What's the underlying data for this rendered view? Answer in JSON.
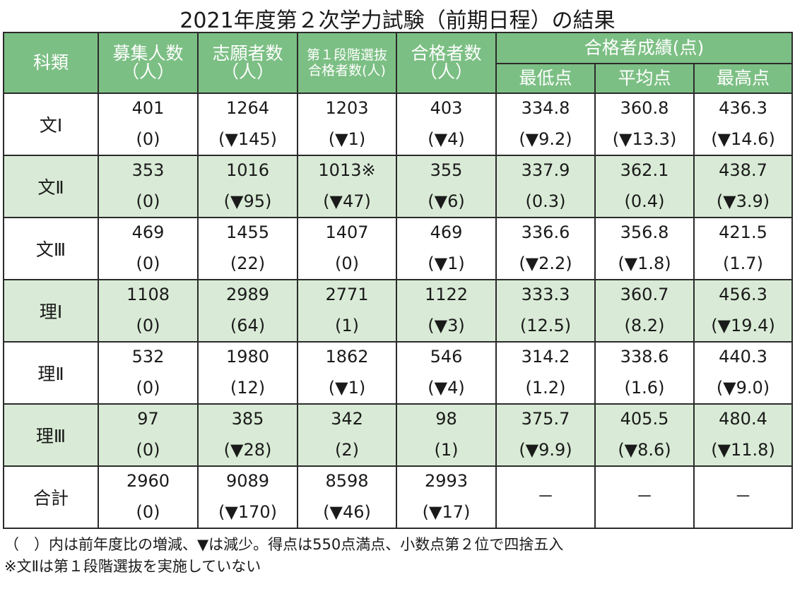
{
  "title": "2021年度第２次学力試験（前期日程）の結果",
  "headers": {
    "category": "科類",
    "quota": [
      "募集人数",
      "（人）"
    ],
    "applicants": [
      "志願者数",
      "（人）"
    ],
    "first_stage": [
      "第１段階選抜",
      "合格者数(人)"
    ],
    "passers": [
      "合格者数",
      "（人）"
    ],
    "scores_group": "合格者成績(点)",
    "min": "最低点",
    "avg": "平均点",
    "max": "最高点"
  },
  "rows": [
    {
      "cat": "文Ⅰ",
      "shade": false,
      "cells": [
        [
          "401",
          "(0)"
        ],
        [
          "1264",
          "(▼145)"
        ],
        [
          "1203",
          "(▼1)"
        ],
        [
          "403",
          "(▼4)"
        ],
        [
          "334.8",
          "(▼9.2)"
        ],
        [
          "360.8",
          "(▼13.3)"
        ],
        [
          "436.3",
          "(▼14.6)"
        ]
      ]
    },
    {
      "cat": "文Ⅱ",
      "shade": true,
      "cells": [
        [
          "353",
          "(0)"
        ],
        [
          "1016",
          "(▼95)"
        ],
        [
          "1013※",
          "(▼47)"
        ],
        [
          "355",
          "(▼6)"
        ],
        [
          "337.9",
          "(0.3)"
        ],
        [
          "362.1",
          "(0.4)"
        ],
        [
          "438.7",
          "(▼3.9)"
        ]
      ]
    },
    {
      "cat": "文Ⅲ",
      "shade": false,
      "cells": [
        [
          "469",
          "(0)"
        ],
        [
          "1455",
          "(22)"
        ],
        [
          "1407",
          "(0)"
        ],
        [
          "469",
          "(▼1)"
        ],
        [
          "336.6",
          "(▼2.2)"
        ],
        [
          "356.8",
          "(▼1.8)"
        ],
        [
          "421.5",
          "(1.7)"
        ]
      ]
    },
    {
      "cat": "理Ⅰ",
      "shade": true,
      "cells": [
        [
          "1108",
          "(0)"
        ],
        [
          "2989",
          "(64)"
        ],
        [
          "2771",
          "(1)"
        ],
        [
          "1122",
          "(▼3)"
        ],
        [
          "333.3",
          "(12.5)"
        ],
        [
          "360.7",
          "(8.2)"
        ],
        [
          "456.3",
          "(▼19.4)"
        ]
      ]
    },
    {
      "cat": "理Ⅱ",
      "shade": false,
      "cells": [
        [
          "532",
          "(0)"
        ],
        [
          "1980",
          "(12)"
        ],
        [
          "1862",
          "(▼1)"
        ],
        [
          "546",
          "(▼4)"
        ],
        [
          "314.2",
          "(1.2)"
        ],
        [
          "338.6",
          "(1.6)"
        ],
        [
          "440.3",
          "(▼9.0)"
        ]
      ]
    },
    {
      "cat": "理Ⅲ",
      "shade": true,
      "cells": [
        [
          "97",
          "(0)"
        ],
        [
          "385",
          "(▼28)"
        ],
        [
          "342",
          "(2)"
        ],
        [
          "98",
          "(1)"
        ],
        [
          "375.7",
          "(▼9.9)"
        ],
        [
          "405.5",
          "(▼8.6)"
        ],
        [
          "480.4",
          "(▼11.8)"
        ]
      ]
    },
    {
      "cat": "合計",
      "shade": false,
      "cells": [
        [
          "2960",
          "(0)"
        ],
        [
          "9089",
          "(▼170)"
        ],
        [
          "8598",
          "(▼46)"
        ],
        [
          "2993",
          "(▼17)"
        ],
        [
          "－",
          ""
        ],
        [
          "－",
          ""
        ],
        [
          "－",
          ""
        ]
      ]
    }
  ],
  "notes": [
    "（　）内は前年度比の増減、▼は減少。得点は550点満点、小数点第２位で四捨五入",
    "※文Ⅱは第１段階選抜を実施していない"
  ]
}
